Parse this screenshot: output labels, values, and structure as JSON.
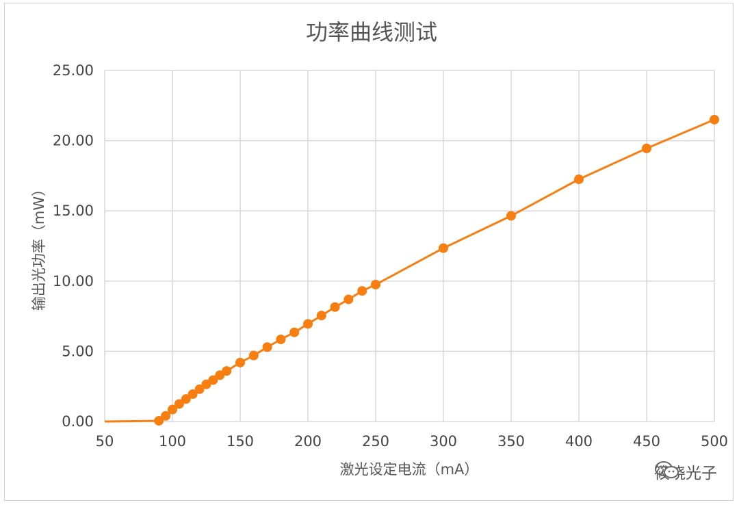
{
  "chart_data": {
    "type": "line",
    "title": "功率曲线测试",
    "xlabel": "激光设定电流（mA）",
    "ylabel": "输出光功率（mW）",
    "xlim": [
      50,
      500
    ],
    "ylim": [
      0,
      25
    ],
    "x_ticks": [
      "50",
      "100",
      "150",
      "200",
      "250",
      "300",
      "350",
      "400",
      "450",
      "500"
    ],
    "y_ticks": [
      "0.00",
      "5.00",
      "10.00",
      "15.00",
      "20.00",
      "25.00"
    ],
    "grid": true,
    "legend": "none",
    "line_color": "#f77f12",
    "series": [
      {
        "x": [
          50,
          90,
          95,
          100,
          105,
          110,
          115,
          120,
          125,
          130,
          135,
          140,
          150,
          160,
          170,
          180,
          190,
          200,
          210,
          220,
          230,
          240,
          250,
          300,
          350,
          400,
          450,
          500
        ],
        "y": [
          0.0,
          0.05,
          0.4,
          0.85,
          1.25,
          1.6,
          1.95,
          2.3,
          2.65,
          2.95,
          3.3,
          3.6,
          4.2,
          4.7,
          5.3,
          5.85,
          6.35,
          6.95,
          7.55,
          8.15,
          8.7,
          9.3,
          9.75,
          12.35,
          14.65,
          17.25,
          19.45,
          21.5
        ],
        "markers_start_index": 1
      }
    ]
  },
  "watermark": {
    "icon": "wechat-icon",
    "text": "筱晓光子"
  }
}
